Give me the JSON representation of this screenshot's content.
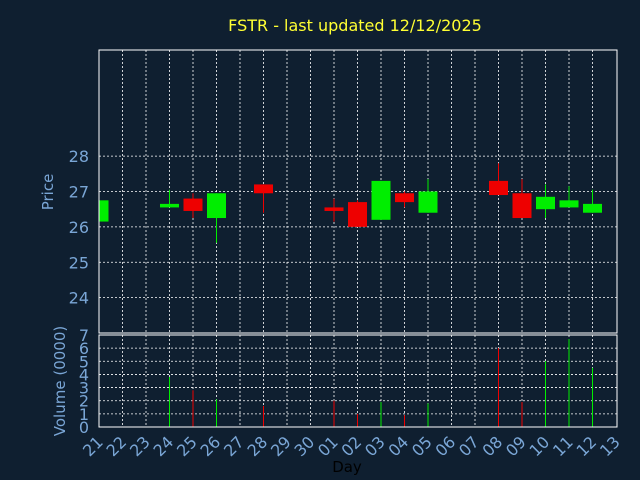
{
  "chart_data": {
    "type": "candlestick",
    "title": "FSTR - last updated 12/12/2025",
    "ylabel": "Price",
    "volume_label": "Volume (0000)",
    "xlabel": "Day",
    "price_ylim": [
      23.0,
      31.0
    ],
    "price_ticks": [
      24,
      25,
      26,
      27,
      28
    ],
    "volume_ylim": [
      0,
      7
    ],
    "volume_ticks": [
      0,
      1,
      2,
      3,
      4,
      5,
      6,
      7
    ],
    "x_ticks": [
      "21",
      "22",
      "23",
      "24",
      "25",
      "26",
      "27",
      "28",
      "29",
      "30",
      "01",
      "02",
      "03",
      "04",
      "05",
      "06",
      "07",
      "08",
      "09",
      "10",
      "11",
      "12",
      "13"
    ],
    "grid": true,
    "colors": {
      "up": "#00ee00",
      "down": "#ee0000",
      "background": "#0f1f30",
      "panel": "#ffffff",
      "grid": "#8899aa",
      "title": "#ffff33",
      "axis_text": "#7aa6d6"
    },
    "candles": [
      {
        "day": "21",
        "open": 26.15,
        "close": 26.75,
        "high": 26.8,
        "low": 26.15,
        "volume": 0.0
      },
      {
        "day": "24",
        "open": 26.55,
        "close": 26.65,
        "high": 27.05,
        "low": 26.55,
        "volume": 3.8
      },
      {
        "day": "25",
        "open": 26.8,
        "close": 26.45,
        "high": 26.95,
        "low": 26.25,
        "volume": 2.8
      },
      {
        "day": "26",
        "open": 26.25,
        "close": 26.95,
        "high": 26.95,
        "low": 25.55,
        "volume": 2.1
      },
      {
        "day": "28",
        "open": 27.2,
        "close": 26.95,
        "high": 27.2,
        "low": 26.4,
        "volume": 1.6
      },
      {
        "day": "01",
        "open": 26.55,
        "close": 26.45,
        "high": 26.8,
        "low": 26.15,
        "volume": 2.0
      },
      {
        "day": "02",
        "open": 26.7,
        "close": 26.0,
        "high": 26.75,
        "low": 26.0,
        "volume": 1.0
      },
      {
        "day": "03",
        "open": 26.2,
        "close": 27.3,
        "high": 27.3,
        "low": 26.2,
        "volume": 1.9
      },
      {
        "day": "04",
        "open": 26.95,
        "close": 26.7,
        "high": 27.0,
        "low": 26.55,
        "volume": 0.9
      },
      {
        "day": "05",
        "open": 26.4,
        "close": 27.0,
        "high": 27.35,
        "low": 26.4,
        "volume": 1.8
      },
      {
        "day": "08",
        "open": 27.3,
        "close": 26.9,
        "high": 27.8,
        "low": 26.9,
        "volume": 6.0
      },
      {
        "day": "09",
        "open": 26.95,
        "close": 26.25,
        "high": 27.35,
        "low": 26.25,
        "volume": 1.9
      },
      {
        "day": "10",
        "open": 26.5,
        "close": 26.85,
        "high": 27.2,
        "low": 26.25,
        "volume": 5.0
      },
      {
        "day": "11",
        "open": 26.55,
        "close": 26.75,
        "high": 27.15,
        "low": 26.55,
        "volume": 6.7
      },
      {
        "day": "12",
        "open": 26.4,
        "close": 26.65,
        "high": 27.05,
        "low": 26.4,
        "volume": 4.5
      }
    ]
  }
}
